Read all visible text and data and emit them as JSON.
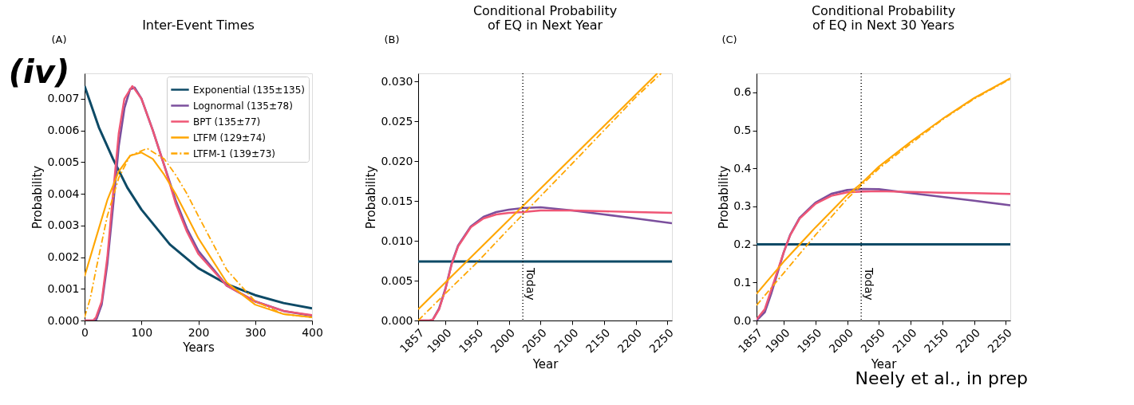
{
  "chart_data": [
    {
      "type": "line",
      "title": "Inter-Event Times",
      "xlabel": "Years",
      "ylabel": "Probability",
      "annotations": [
        "(iv)",
        "(A)"
      ],
      "xlim": [
        0,
        400
      ],
      "xticks": [
        0,
        100,
        200,
        300,
        400
      ],
      "ylim": [
        0,
        0.0078
      ],
      "yticks": [
        {
          "value": 0,
          "label": "0.000"
        },
        0.001,
        0.002,
        0.003,
        0.004,
        0.005,
        0.006,
        0.007
      ],
      "grid": false,
      "legend": "top right",
      "series": [
        {
          "name": "Exponential (135±135)",
          "color": "#0d4a66",
          "line_style": "solid",
          "x": [
            0,
            25,
            50,
            75,
            100,
            150,
            200,
            250,
            300,
            350,
            400
          ],
          "values": [
            0.0074,
            0.0061,
            0.0051,
            0.0042,
            0.0035,
            0.0024,
            0.00165,
            0.00115,
            0.0008,
            0.00055,
            0.00038
          ]
        },
        {
          "name": "Lognormal (135±78)",
          "color": "#7b4f9d",
          "line_style": "solid",
          "x": [
            0,
            15,
            20,
            30,
            40,
            50,
            60,
            70,
            80,
            88,
            100,
            120,
            140,
            160,
            180,
            200,
            250,
            300,
            350,
            400
          ],
          "values": [
            0,
            0,
            0,
            0.0005,
            0.0018,
            0.0036,
            0.0055,
            0.0067,
            0.0073,
            0.00735,
            0.007,
            0.006,
            0.0049,
            0.0038,
            0.0029,
            0.0022,
            0.0011,
            0.0006,
            0.0003,
            0.00015
          ]
        },
        {
          "name": "BPT (135±77)",
          "color": "#ef5675",
          "line_style": "solid",
          "x": [
            0,
            15,
            20,
            30,
            40,
            50,
            60,
            70,
            84,
            100,
            120,
            140,
            160,
            180,
            200,
            250,
            300,
            350,
            400
          ],
          "values": [
            0,
            0,
            0.0001,
            0.0006,
            0.002,
            0.004,
            0.0059,
            0.007,
            0.0074,
            0.007,
            0.006,
            0.0049,
            0.0037,
            0.0028,
            0.0021,
            0.0011,
            0.0006,
            0.0003,
            0.00017
          ]
        },
        {
          "name": "LTFM (129±74)",
          "color": "#ffa600",
          "line_style": "solid",
          "x": [
            0,
            20,
            40,
            60,
            80,
            100,
            120,
            140,
            160,
            180,
            200,
            250,
            300,
            350,
            400
          ],
          "values": [
            0.0014,
            0.0026,
            0.0038,
            0.0047,
            0.0052,
            0.0053,
            0.0051,
            0.0046,
            0.004,
            0.0033,
            0.0026,
            0.0012,
            0.0005,
            0.0002,
            0.0001
          ]
        },
        {
          "name": "LTFM-1 (139±73)",
          "color": "#ffa600",
          "line_style": "dashdot",
          "x": [
            0,
            10,
            20,
            40,
            60,
            80,
            110,
            140,
            160,
            180,
            200,
            250,
            300,
            350,
            400
          ],
          "values": [
            0.0001,
            0.0007,
            0.0016,
            0.0033,
            0.0045,
            0.0052,
            0.00543,
            0.0051,
            0.0046,
            0.004,
            0.0033,
            0.0016,
            0.0006,
            0.0002,
            0.0001
          ]
        }
      ]
    },
    {
      "type": "line",
      "title": "Conditional Probability\nof EQ in Next Year",
      "xlabel": "Year",
      "ylabel": "Probability",
      "annotations": [
        "(B)"
      ],
      "xlim": [
        1857,
        2257
      ],
      "xticks": [
        1857,
        1900,
        1950,
        2000,
        2050,
        2100,
        2150,
        2200,
        2250
      ],
      "ylim": [
        0,
        0.031
      ],
      "yticks": [
        {
          "value": 0,
          "label": "0.000"
        },
        0.005,
        {
          "value": 0.01,
          "label": "0.010"
        },
        0.015,
        {
          "value": 0.02,
          "label": "0.020"
        },
        0.025,
        {
          "value": 0.03,
          "label": "0.030"
        }
      ],
      "grid": false,
      "ref_lines": [
        {
          "axis": "x",
          "value": 2022,
          "label": "Today",
          "color": "#000000",
          "line_style": "dotted"
        }
      ],
      "series": [
        {
          "color": "#0d4a66",
          "line_style": "solid",
          "x": [
            1857,
            2257
          ],
          "values": [
            0.0074,
            0.0074
          ]
        },
        {
          "color": "#7b4f9d",
          "line_style": "solid",
          "x": [
            1857,
            1875,
            1880,
            1890,
            1900,
            1910,
            1920,
            1940,
            1960,
            1980,
            2000,
            2022,
            2050,
            2100,
            2150,
            2200,
            2257
          ],
          "values": [
            0,
            0,
            0.0001,
            0.0015,
            0.004,
            0.0072,
            0.0094,
            0.0118,
            0.013,
            0.0136,
            0.0139,
            0.0141,
            0.0142,
            0.0138,
            0.0133,
            0.0128,
            0.0122
          ]
        },
        {
          "color": "#ef5675",
          "line_style": "solid",
          "x": [
            1857,
            1875,
            1880,
            1890,
            1900,
            1910,
            1920,
            1940,
            1960,
            1980,
            2000,
            2022,
            2050,
            2100,
            2150,
            2200,
            2257
          ],
          "values": [
            0,
            0,
            0.0001,
            0.0014,
            0.0039,
            0.0071,
            0.0093,
            0.0117,
            0.0128,
            0.0133,
            0.0135,
            0.0136,
            0.0138,
            0.0138,
            0.0137,
            0.0136,
            0.0135
          ]
        },
        {
          "color": "#ffa600",
          "line_style": "solid",
          "x": [
            1857,
            2234
          ],
          "values": [
            0.0014,
            0.031
          ]
        },
        {
          "color": "#ffa600",
          "line_style": "dashdot",
          "x": [
            1857,
            1900,
            1950,
            2000,
            2022,
            2100,
            2200,
            2240
          ],
          "values": [
            0,
            0.0034,
            0.0073,
            0.0115,
            0.0133,
            0.0197,
            0.028,
            0.031
          ]
        }
      ]
    },
    {
      "type": "line",
      "title": "Conditional Probability\nof EQ in Next 30 Years",
      "xlabel": "Year",
      "ylabel": "Probability",
      "annotations": [
        "(C)",
        "Neely et al., in prep"
      ],
      "xlim": [
        1857,
        2257
      ],
      "xticks": [
        1857,
        1900,
        1950,
        2000,
        2050,
        2100,
        2150,
        2200,
        2250
      ],
      "ylim": [
        0,
        0.65
      ],
      "yticks": [
        {
          "value": 0,
          "label": "0.0"
        },
        0.1,
        0.2,
        0.3,
        0.4,
        0.5,
        0.6
      ],
      "grid": false,
      "ref_lines": [
        {
          "axis": "x",
          "value": 2022,
          "label": "Today",
          "color": "#000000",
          "line_style": "dotted"
        }
      ],
      "series": [
        {
          "color": "#0d4a66",
          "line_style": "solid",
          "x": [
            1857,
            2257
          ],
          "values": [
            0.2,
            0.2
          ]
        },
        {
          "color": "#7b4f9d",
          "line_style": "solid",
          "x": [
            1857,
            1870,
            1880,
            1890,
            1900,
            1910,
            1925,
            1950,
            1975,
            2000,
            2025,
            2050,
            2100,
            2150,
            2200,
            2257
          ],
          "values": [
            0,
            0.022,
            0.07,
            0.125,
            0.18,
            0.225,
            0.27,
            0.31,
            0.333,
            0.343,
            0.346,
            0.345,
            0.335,
            0.325,
            0.315,
            0.303
          ]
        },
        {
          "color": "#ef5675",
          "line_style": "solid",
          "x": [
            1857,
            1870,
            1880,
            1890,
            1900,
            1910,
            1925,
            1950,
            1975,
            2000,
            2025,
            2050,
            2100,
            2150,
            2200,
            2257
          ],
          "values": [
            0.003,
            0.03,
            0.08,
            0.13,
            0.18,
            0.224,
            0.268,
            0.307,
            0.328,
            0.337,
            0.339,
            0.34,
            0.338,
            0.336,
            0.335,
            0.333
          ]
        },
        {
          "color": "#ffa600",
          "line_style": "solid",
          "x": [
            1857,
            1900,
            1950,
            2000,
            2022,
            2050,
            2100,
            2150,
            2200,
            2257
          ],
          "values": [
            0.07,
            0.155,
            0.245,
            0.33,
            0.36,
            0.405,
            0.47,
            0.53,
            0.585,
            0.637
          ]
        },
        {
          "color": "#ffa600",
          "line_style": "dashdot",
          "x": [
            1857,
            1900,
            1950,
            2000,
            2022,
            2050,
            2100,
            2150,
            2200,
            2257
          ],
          "values": [
            0.04,
            0.125,
            0.225,
            0.32,
            0.355,
            0.4,
            0.465,
            0.528,
            0.583,
            0.635
          ]
        }
      ]
    }
  ]
}
